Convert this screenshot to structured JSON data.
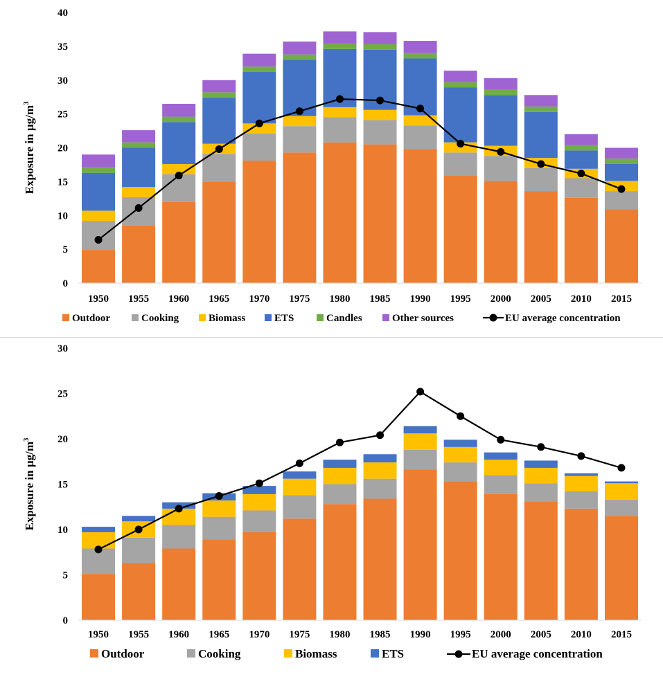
{
  "chart_data": [
    {
      "type": "bar",
      "stacked": true,
      "title": "",
      "xlabel": "",
      "ylabel": "Exposure in µg/m",
      "ylabel_superscript": "3",
      "ylim": [
        0,
        40
      ],
      "yticks": [
        0,
        5,
        10,
        15,
        20,
        25,
        30,
        35,
        40
      ],
      "categories": [
        "1950",
        "1955",
        "1960",
        "1965",
        "1970",
        "1975",
        "1980",
        "1985",
        "1990",
        "1995",
        "2000",
        "2005",
        "2010",
        "2015"
      ],
      "series": [
        {
          "name": "Outdoor",
          "color": "#ED7D31",
          "values": [
            4.9,
            8.5,
            12.0,
            15.0,
            18.1,
            19.3,
            20.8,
            20.5,
            19.8,
            15.9,
            15.1,
            13.6,
            12.6,
            10.9
          ]
        },
        {
          "name": "Cooking",
          "color": "#A5A5A5",
          "values": [
            4.3,
            4.2,
            4.1,
            4.1,
            4.0,
            3.9,
            3.7,
            3.6,
            3.5,
            3.4,
            3.7,
            3.4,
            2.9,
            2.7
          ]
        },
        {
          "name": "Biomass",
          "color": "#FFC000",
          "values": [
            1.5,
            1.5,
            1.5,
            1.5,
            1.5,
            1.5,
            1.5,
            1.5,
            1.5,
            1.5,
            1.5,
            1.5,
            1.4,
            1.5
          ]
        },
        {
          "name": "ETS",
          "color": "#4472C4",
          "values": [
            5.6,
            5.8,
            6.2,
            6.8,
            7.6,
            8.3,
            8.6,
            8.9,
            8.4,
            8.1,
            7.5,
            6.8,
            2.7,
            2.5
          ]
        },
        {
          "name": "Candles",
          "color": "#70AD47",
          "values": [
            0.8,
            0.8,
            0.8,
            0.8,
            0.8,
            0.8,
            0.8,
            0.8,
            0.8,
            0.8,
            0.8,
            0.8,
            0.8,
            0.8
          ]
        },
        {
          "name": "Other sources",
          "color": "#A064D2",
          "values": [
            1.9,
            1.8,
            1.9,
            1.8,
            1.9,
            1.9,
            1.8,
            1.8,
            1.8,
            1.7,
            1.7,
            1.7,
            1.6,
            1.6
          ]
        }
      ],
      "line": {
        "name": "EU average concentration",
        "color": "#000000",
        "values": [
          6.4,
          11.1,
          15.9,
          19.8,
          23.6,
          25.4,
          27.2,
          27.0,
          25.8,
          20.6,
          19.4,
          17.6,
          16.2,
          13.9
        ]
      },
      "legend": {
        "position": "bottom",
        "entries": [
          "Outdoor",
          "Cooking",
          "Biomass",
          "ETS",
          "Candles",
          "Other sources",
          "EU average concentration"
        ]
      },
      "grid": false
    },
    {
      "type": "bar",
      "stacked": true,
      "title": "",
      "xlabel": "",
      "ylabel": "Exposure in µg/m",
      "ylabel_superscript": "3",
      "ylim": [
        0,
        30
      ],
      "yticks": [
        0,
        5,
        10,
        15,
        20,
        25,
        30
      ],
      "categories": [
        "1950",
        "1955",
        "1960",
        "1965",
        "1970",
        "1975",
        "1980",
        "1985",
        "1990",
        "1995",
        "2000",
        "2005",
        "2010",
        "2015"
      ],
      "series": [
        {
          "name": "Outdoor",
          "color": "#ED7D31",
          "values": [
            5.1,
            6.3,
            7.9,
            8.9,
            9.7,
            11.2,
            12.8,
            13.4,
            16.6,
            15.3,
            13.9,
            13.1,
            12.3,
            11.5
          ]
        },
        {
          "name": "Cooking",
          "color": "#A5A5A5",
          "values": [
            2.8,
            2.8,
            2.6,
            2.5,
            2.4,
            2.6,
            2.2,
            2.2,
            2.2,
            2.1,
            2.1,
            2.0,
            1.9,
            1.8
          ]
        },
        {
          "name": "Biomass",
          "color": "#FFC000",
          "values": [
            1.8,
            1.8,
            1.8,
            1.8,
            1.8,
            1.8,
            1.8,
            1.8,
            1.8,
            1.7,
            1.7,
            1.7,
            1.7,
            1.8
          ]
        },
        {
          "name": "ETS",
          "color": "#4472C4",
          "values": [
            0.6,
            0.6,
            0.7,
            0.8,
            0.9,
            0.8,
            0.9,
            0.9,
            0.8,
            0.8,
            0.8,
            0.8,
            0.3,
            0.2
          ]
        }
      ],
      "line": {
        "name": "EU average concentration",
        "color": "#000000",
        "values": [
          7.8,
          10.0,
          12.3,
          13.7,
          15.1,
          17.3,
          19.6,
          20.4,
          25.2,
          22.5,
          19.9,
          19.1,
          18.1,
          16.8
        ]
      },
      "legend": {
        "position": "bottom",
        "entries": [
          "Outdoor",
          "Cooking",
          "Biomass",
          "ETS",
          "EU average concentration"
        ]
      },
      "grid": false
    }
  ]
}
